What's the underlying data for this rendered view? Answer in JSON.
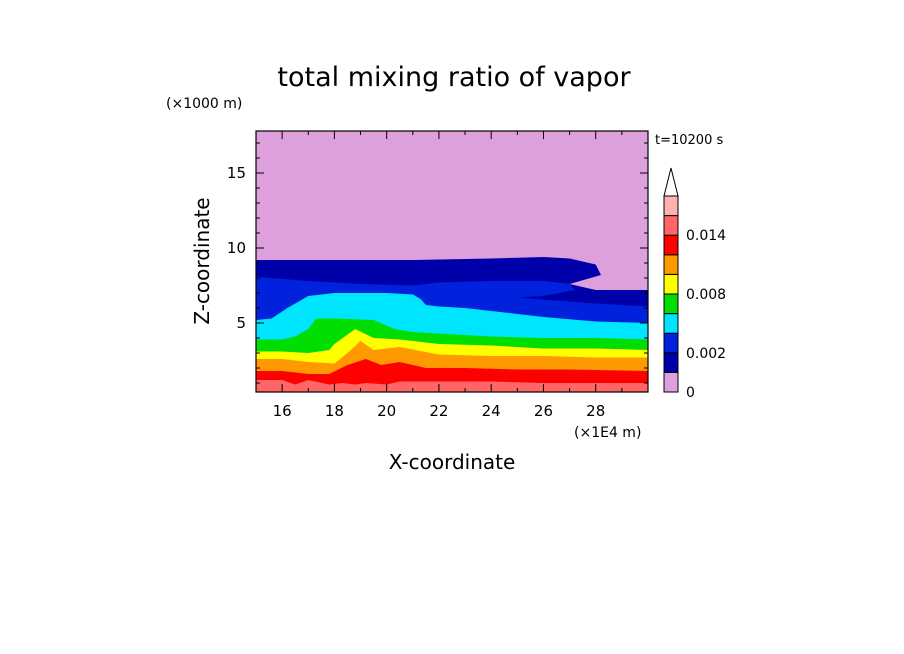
{
  "chart_data": {
    "type": "heatmap",
    "title": "total mixing ratio of vapor",
    "time_label": "t=10200 s",
    "xlabel": "X-coordinate",
    "ylabel": "Z-coordinate",
    "x_unit": "(×1E4 m)",
    "y_unit": "(×1000 m)",
    "xlim": [
      15,
      30
    ],
    "ylim": [
      0.4,
      17.8
    ],
    "x_ticks": [
      "16",
      "18",
      "20",
      "22",
      "24",
      "26",
      "28"
    ],
    "y_ticks": [
      "5",
      "10",
      "15"
    ],
    "x_tick_values": [
      16,
      18,
      20,
      22,
      24,
      26,
      28
    ],
    "y_tick_values": [
      5,
      10,
      15
    ],
    "colorbar": {
      "levels": [
        0,
        0.001,
        0.002,
        0.004,
        0.006,
        0.008,
        0.01,
        0.012,
        0.014,
        0.016
      ],
      "labels": [
        "0",
        "0.002",
        "0.008",
        "0.014"
      ],
      "label_values": [
        0,
        0.002,
        0.008,
        0.014
      ],
      "colors": [
        "#dda0dd",
        "#0000aa",
        "#0022dd",
        "#00e5ff",
        "#00dd00",
        "#ffff00",
        "#ff9900",
        "#ff0000",
        "#ff6666",
        "#ffb0b0"
      ],
      "extend": "max"
    },
    "contour_bands": [
      {
        "level_index": 1,
        "top": [
          [
            15,
            9.2
          ],
          [
            18,
            9.2
          ],
          [
            21,
            9.2
          ],
          [
            24,
            9.3
          ],
          [
            26,
            9.4
          ],
          [
            27,
            9.3
          ],
          [
            28,
            8.9
          ],
          [
            28.2,
            8.2
          ],
          [
            27,
            7.6
          ],
          [
            28,
            7.2
          ],
          [
            30,
            7.2
          ]
        ]
      },
      {
        "level_index": 2,
        "top": [
          [
            15,
            8.1
          ],
          [
            15.5,
            8.0
          ],
          [
            17,
            7.8
          ],
          [
            19,
            7.6
          ],
          [
            21,
            7.5
          ],
          [
            22,
            7.7
          ],
          [
            24,
            7.8
          ],
          [
            26,
            7.8
          ],
          [
            27,
            7.6
          ],
          [
            27.2,
            7.2
          ],
          [
            26,
            6.8
          ],
          [
            25,
            6.7
          ],
          [
            28,
            6.3
          ],
          [
            30,
            6.1
          ]
        ]
      },
      {
        "level_index": 3,
        "top": [
          [
            15,
            5.2
          ],
          [
            15.6,
            5.3
          ],
          [
            16.2,
            6.0
          ],
          [
            17,
            6.8
          ],
          [
            18,
            7.0
          ],
          [
            20,
            7.0
          ],
          [
            21,
            6.9
          ],
          [
            21.3,
            6.6
          ],
          [
            21.5,
            6.2
          ],
          [
            22,
            6.1
          ],
          [
            23,
            6.0
          ],
          [
            24,
            5.8
          ],
          [
            26,
            5.4
          ],
          [
            28,
            5.1
          ],
          [
            30,
            5.0
          ]
        ]
      },
      {
        "level_index": 4,
        "top": [
          [
            15,
            3.9
          ],
          [
            16,
            3.9
          ],
          [
            16.5,
            4.1
          ],
          [
            17,
            4.6
          ],
          [
            17.3,
            5.3
          ],
          [
            18,
            5.3
          ],
          [
            19.5,
            5.2
          ],
          [
            20.3,
            4.6
          ],
          [
            21,
            4.4
          ],
          [
            22,
            4.3
          ],
          [
            24,
            4.1
          ],
          [
            26,
            4.0
          ],
          [
            28,
            4.0
          ],
          [
            30,
            3.9
          ]
        ]
      },
      {
        "level_index": 5,
        "top": [
          [
            15,
            3.1
          ],
          [
            16,
            3.1
          ],
          [
            17,
            3.0
          ],
          [
            17.8,
            3.2
          ],
          [
            18,
            3.6
          ],
          [
            18.8,
            4.6
          ],
          [
            19.5,
            4.0
          ],
          [
            20.5,
            3.9
          ],
          [
            22,
            3.6
          ],
          [
            24,
            3.5
          ],
          [
            26,
            3.3
          ],
          [
            28,
            3.3
          ],
          [
            30,
            3.2
          ]
        ]
      },
      {
        "level_index": 6,
        "top": [
          [
            15,
            2.6
          ],
          [
            16,
            2.6
          ],
          [
            17,
            2.4
          ],
          [
            18,
            2.3
          ],
          [
            18.5,
            3.0
          ],
          [
            19,
            3.8
          ],
          [
            19.5,
            3.2
          ],
          [
            20.5,
            3.4
          ],
          [
            22,
            2.9
          ],
          [
            24,
            2.8
          ],
          [
            26,
            2.8
          ],
          [
            28,
            2.7
          ],
          [
            30,
            2.7
          ]
        ]
      },
      {
        "level_index": 7,
        "top": [
          [
            15,
            1.8
          ],
          [
            16,
            1.8
          ],
          [
            17,
            1.6
          ],
          [
            17.8,
            1.6
          ],
          [
            18.5,
            2.2
          ],
          [
            19.2,
            2.6
          ],
          [
            19.8,
            2.2
          ],
          [
            20.5,
            2.4
          ],
          [
            21.5,
            2.0
          ],
          [
            23,
            2.0
          ],
          [
            25,
            1.9
          ],
          [
            27,
            1.9
          ],
          [
            30,
            1.8
          ]
        ]
      },
      {
        "level_index": 8,
        "top": [
          [
            15,
            1.2
          ],
          [
            16,
            1.2
          ],
          [
            16.5,
            0.9
          ],
          [
            17,
            1.2
          ],
          [
            17.8,
            0.9
          ],
          [
            18.3,
            1.0
          ],
          [
            18.8,
            0.9
          ],
          [
            19.2,
            1.0
          ],
          [
            20,
            0.9
          ],
          [
            20.5,
            1.1
          ],
          [
            22,
            1.1
          ],
          [
            24,
            1.1
          ],
          [
            26,
            1.0
          ],
          [
            28,
            1.0
          ],
          [
            30,
            1.0
          ]
        ]
      }
    ]
  }
}
